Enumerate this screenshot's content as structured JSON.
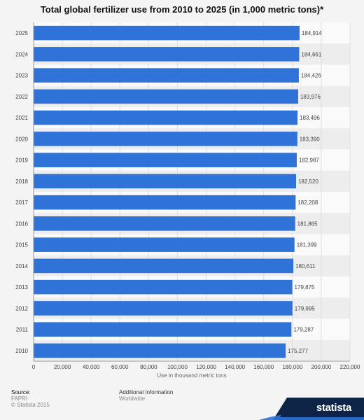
{
  "title": "Total global fertilizer use from 2010 to 2025 (in 1,000 metric tons)*",
  "footer": {
    "source_label": "Source:",
    "source_lines": [
      "FAPRI",
      "© Statista 2015"
    ],
    "info_label": "Additional Information",
    "info_value": "Worldwide",
    "brand": "statista"
  },
  "colors": {
    "bar": "#2f72d8",
    "background": "#f4f4f4",
    "band_light": "#fafafa",
    "band_dark": "#ededed",
    "brand_dark": "#0e2447"
  },
  "chart_data": {
    "type": "bar",
    "orientation": "horizontal",
    "title": "Total global fertilizer use from 2010 to 2025 (in 1,000 metric tons)*",
    "xlabel": "Use in thousand metric tons",
    "ylabel": "",
    "categories": [
      "2025",
      "2024",
      "2023",
      "2022",
      "2021",
      "2020",
      "2019",
      "2018",
      "2017",
      "2016",
      "2015",
      "2014",
      "2013",
      "2012",
      "2011",
      "2010"
    ],
    "values": [
      184914,
      184661,
      184426,
      183976,
      183496,
      183390,
      182987,
      182520,
      182208,
      181865,
      181399,
      180611,
      179875,
      179995,
      179287,
      175277
    ],
    "value_labels": [
      "184,914",
      "184,661",
      "184,426",
      "183,976",
      "183,496",
      "183,390",
      "182,987",
      "182,520",
      "182,208",
      "181,865",
      "181,399",
      "180,611",
      "179,875",
      "179,995",
      "179,287",
      "175,277"
    ],
    "xlim": [
      0,
      220000
    ],
    "xticks": [
      0,
      20000,
      40000,
      60000,
      80000,
      100000,
      120000,
      140000,
      160000,
      180000,
      200000,
      220000
    ],
    "xtick_labels": [
      "0",
      "20,000",
      "40,000",
      "60,000",
      "80,000",
      "100,000",
      "120,000",
      "140,000",
      "160,000",
      "180,000",
      "200,000",
      "220,000"
    ],
    "grid": true,
    "legend": "none"
  }
}
